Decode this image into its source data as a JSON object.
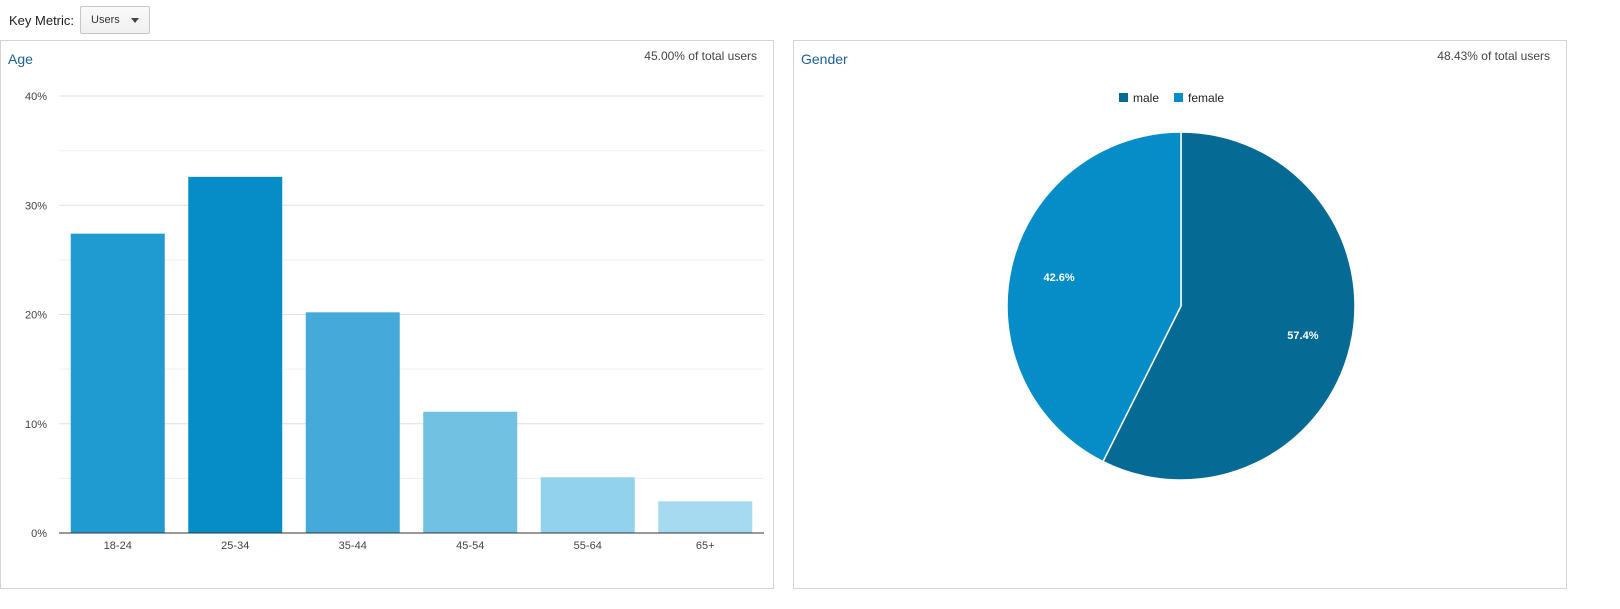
{
  "key_metric": {
    "label": "Key Metric:",
    "selected": "Users"
  },
  "colors": {
    "title": "#1d6197",
    "age_bars": [
      "#1f9bd1",
      "#068dc8",
      "#45aad9",
      "#71c1e3",
      "#93d2ec",
      "#a6daf0"
    ],
    "male": "#056b95",
    "female": "#068dc8"
  },
  "age": {
    "title": "Age",
    "share_label": "45.00% of total users"
  },
  "gender": {
    "title": "Gender",
    "share_label": "48.43% of total users"
  },
  "chart_data": [
    {
      "type": "bar",
      "title": "Age",
      "categories": [
        "18-24",
        "25-34",
        "35-44",
        "45-54",
        "55-64",
        "65+"
      ],
      "values": [
        27.4,
        32.6,
        20.2,
        11.1,
        5.1,
        2.9
      ],
      "unit": "%",
      "ylim": [
        0,
        40
      ],
      "yticks": [
        "0%",
        "10%",
        "20%",
        "30%",
        "40%"
      ],
      "grid": true,
      "legend": "none"
    },
    {
      "type": "pie",
      "title": "Gender",
      "labels": [
        "male",
        "female"
      ],
      "values": [
        57.4,
        42.6
      ],
      "value_labels": [
        "57.4%",
        "42.6%"
      ],
      "legend": "top"
    }
  ]
}
